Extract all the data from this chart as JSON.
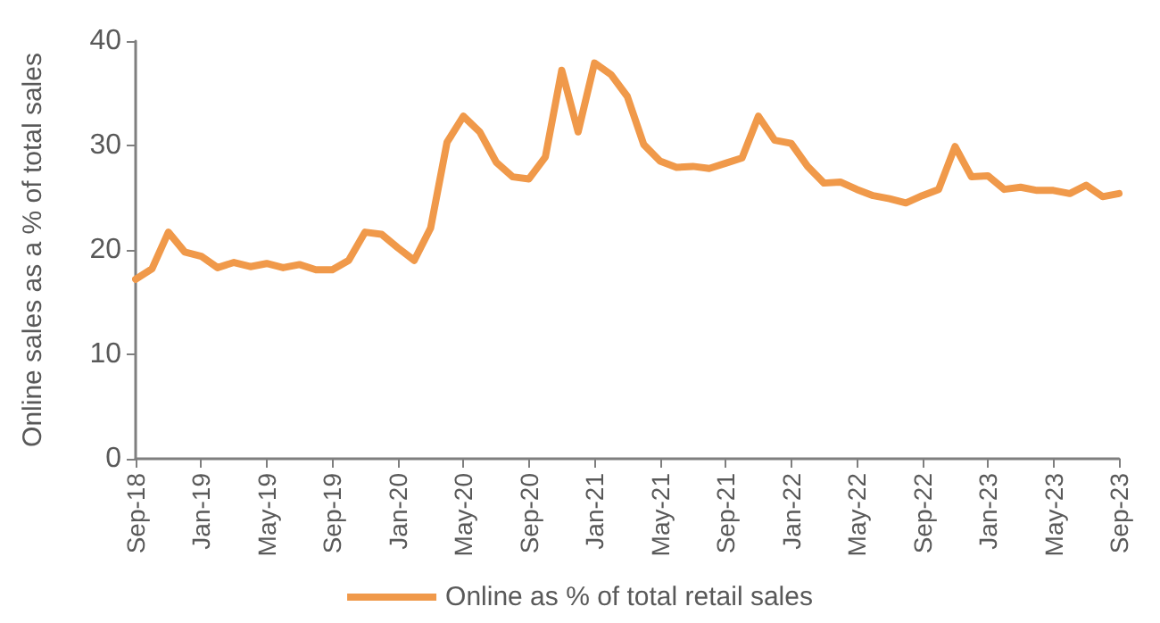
{
  "chart_data": {
    "type": "line",
    "ylabel": "Online sales as a % of total sales",
    "categories": [
      "Sep-18",
      null,
      null,
      null,
      "Jan-19",
      null,
      null,
      null,
      "May-19",
      null,
      null,
      null,
      "Sep-19",
      null,
      null,
      null,
      "Jan-20",
      null,
      null,
      null,
      "May-20",
      null,
      null,
      null,
      "Sep-20",
      null,
      null,
      null,
      "Jan-21",
      null,
      null,
      null,
      "May-21",
      null,
      null,
      null,
      "Sep-21",
      null,
      null,
      null,
      "Jan-22",
      null,
      null,
      null,
      "May-22",
      null,
      null,
      null,
      "Sep-22",
      null,
      null,
      null,
      "Jan-23",
      null,
      null,
      null,
      "May-23",
      null,
      null,
      null,
      "Sep-23"
    ],
    "series": [
      {
        "name": "Online as % of total retail sales",
        "color": "#f0994a",
        "values": [
          17.2,
          18.2,
          21.7,
          19.8,
          19.4,
          18.3,
          18.8,
          18.4,
          18.7,
          18.3,
          18.6,
          18.1,
          18.1,
          19.0,
          21.7,
          21.5,
          20.2,
          19.0,
          22.1,
          30.3,
          32.8,
          31.3,
          28.4,
          27.0,
          26.8,
          28.9,
          37.2,
          31.3,
          37.9,
          36.8,
          34.7,
          30.1,
          28.5,
          27.9,
          28.0,
          27.8,
          28.3,
          28.8,
          32.8,
          30.5,
          30.2,
          28.0,
          26.4,
          26.5,
          25.8,
          25.2,
          24.9,
          24.5,
          25.2,
          25.8,
          29.9,
          27.0,
          27.1,
          25.8,
          26.0,
          25.7,
          25.7,
          25.4,
          26.2,
          25.1,
          25.4
        ]
      }
    ],
    "ylim": [
      0,
      40
    ],
    "yticks": [
      0,
      10,
      20,
      30,
      40
    ],
    "grid": false,
    "legend": "bottom",
    "marker": "none",
    "line_style": "solid"
  }
}
